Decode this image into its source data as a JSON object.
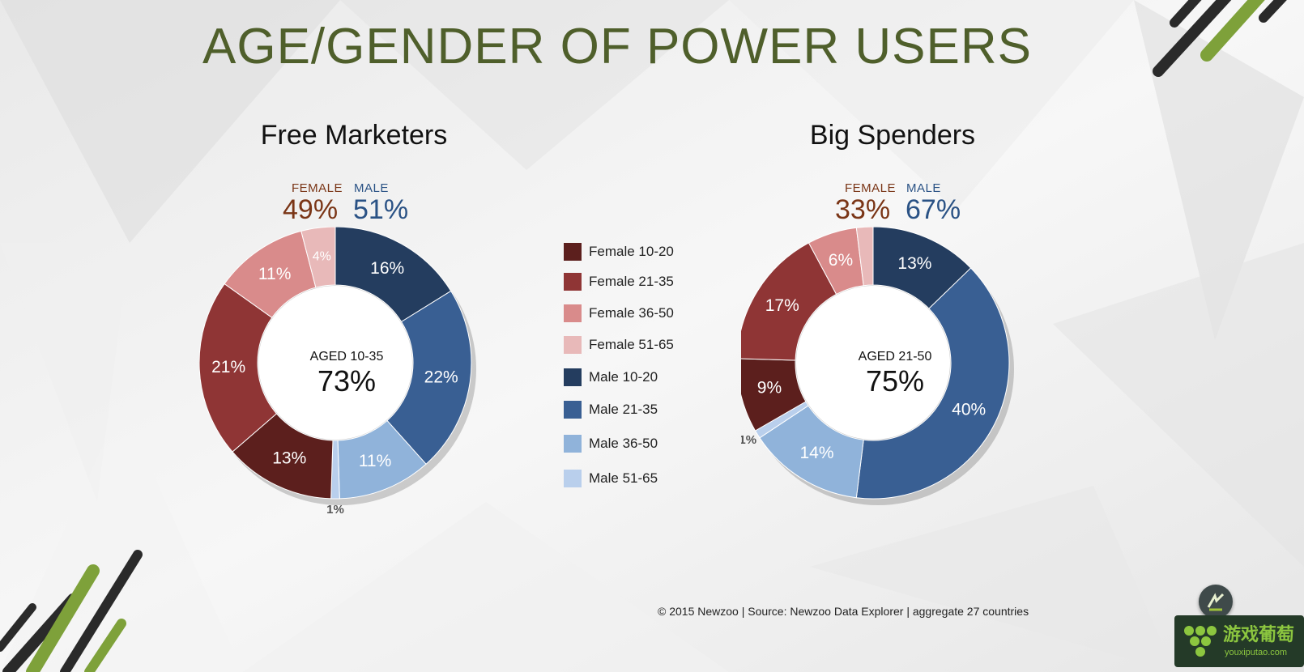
{
  "page": {
    "title": "AGE/GENDER OF POWER USERS",
    "footer": "© 2015 Newzoo | Source: Newzoo Data Explorer | aggregate 27 countries",
    "watermark": {
      "main": "游戏葡萄",
      "sub": "youxiputao.com"
    }
  },
  "colors": {
    "female_10_20": "#5c1f1d",
    "female_21_35": "#8f3535",
    "female_36_50": "#d98b8b",
    "female_51_65": "#e8b9b9",
    "male_10_20": "#243d5f",
    "male_21_35": "#395f93",
    "male_36_50": "#90b3da",
    "male_51_65": "#b9cfec",
    "title_green": "#4f5f2b",
    "female_text": "#7a3516",
    "male_text": "#2a5285"
  },
  "legend": [
    {
      "label": "Female 10-20",
      "color": "#5c1f1d"
    },
    {
      "label": "Female 21-35",
      "color": "#8f3535"
    },
    {
      "label": "Female 36-50",
      "color": "#d98b8b"
    },
    {
      "label": "Female 51-65",
      "color": "#e8b9b9"
    },
    {
      "label": "Male 10-20",
      "color": "#243d5f"
    },
    {
      "label": "Male 21-35",
      "color": "#395f93"
    },
    {
      "label": "Male 36-50",
      "color": "#90b3da"
    },
    {
      "label": "Male 51-65",
      "color": "#b9cfec"
    }
  ],
  "chart_data": [
    {
      "type": "pie",
      "title": "Free Marketers",
      "gender": {
        "female_label": "FEMALE",
        "female_pct": "49%",
        "male_label": "MALE",
        "male_pct": "51%"
      },
      "center": {
        "label": "AGED 10-35",
        "value": "73%"
      },
      "categories": [
        "Male 10-20",
        "Male 21-35",
        "Male 36-50",
        "Male 51-65",
        "Female 10-20",
        "Female 21-35",
        "Female 36-50",
        "Female 51-65"
      ],
      "values": [
        16,
        22,
        11,
        1,
        13,
        21,
        11,
        4
      ],
      "labels": [
        "16%",
        "22%",
        "11%",
        "1%",
        "13%",
        "21%",
        "11%",
        "4%"
      ]
    },
    {
      "type": "pie",
      "title": "Big Spenders",
      "gender": {
        "female_label": "FEMALE",
        "female_pct": "33%",
        "male_label": "MALE",
        "male_pct": "67%"
      },
      "center": {
        "label": "AGED 21-50",
        "value": "75%"
      },
      "categories": [
        "Male 10-20",
        "Male 21-35",
        "Male 36-50",
        "Male 51-65",
        "Female 10-20",
        "Female 21-35",
        "Female 36-50",
        "Female 51-65"
      ],
      "values": [
        13,
        40,
        14,
        1,
        9,
        17,
        6,
        2
      ],
      "labels": [
        "13%",
        "40%",
        "14%",
        "1%",
        "9%",
        "17%",
        "6%",
        "2%"
      ]
    }
  ]
}
